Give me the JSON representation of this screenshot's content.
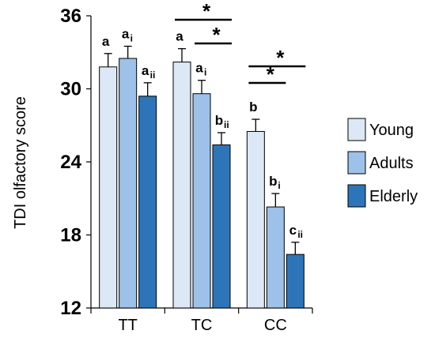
{
  "chart_data": {
    "type": "bar",
    "ylabel": "TDI olfactory score",
    "xlabel": "",
    "title": "",
    "ylim": [
      12,
      36
    ],
    "yticks": [
      12,
      18,
      24,
      30,
      36
    ],
    "categories": [
      "TT",
      "TC",
      "CC"
    ],
    "series": [
      {
        "name": "Young",
        "color": "#dde8f6",
        "values": [
          31.8,
          32.2,
          26.5
        ],
        "errors": [
          1.1,
          1.1,
          1.0
        ]
      },
      {
        "name": "Adults",
        "color": "#9dc1e8",
        "values": [
          32.5,
          29.6,
          20.3
        ],
        "errors": [
          1.0,
          1.1,
          1.1
        ]
      },
      {
        "name": "Elderly",
        "color": "#2e74b8",
        "values": [
          29.4,
          25.4,
          16.4
        ],
        "errors": [
          1.1,
          1.0,
          1.0
        ]
      }
    ],
    "annotations": [
      {
        "category": "TT",
        "series": "Young",
        "text": "a",
        "sub": ""
      },
      {
        "category": "TT",
        "series": "Adults",
        "text": "a",
        "sub": "i"
      },
      {
        "category": "TT",
        "series": "Elderly",
        "text": "a",
        "sub": "ii"
      },
      {
        "category": "TC",
        "series": "Young",
        "text": "a",
        "sub": ""
      },
      {
        "category": "TC",
        "series": "Adults",
        "text": "a",
        "sub": "i"
      },
      {
        "category": "TC",
        "series": "Elderly",
        "text": "b",
        "sub": "ii"
      },
      {
        "category": "CC",
        "series": "Young",
        "text": "b",
        "sub": ""
      },
      {
        "category": "CC",
        "series": "Adults",
        "text": "b",
        "sub": "i"
      },
      {
        "category": "CC",
        "series": "Elderly",
        "text": "c",
        "sub": "ii"
      }
    ],
    "significance": [
      {
        "category": "TC",
        "from": "Young",
        "to": "Elderly",
        "text": "*"
      },
      {
        "category": "TC",
        "from": "Adults",
        "to": "Elderly",
        "text": "*"
      },
      {
        "category": "CC",
        "from": "Young",
        "to": "Elderly",
        "text": "*"
      },
      {
        "category": "CC",
        "from": "Young",
        "to": "Adults",
        "text": "*"
      }
    ],
    "legend_position": "right"
  }
}
